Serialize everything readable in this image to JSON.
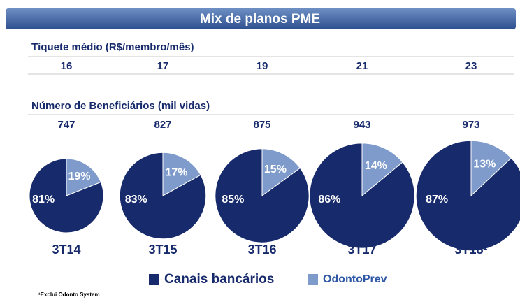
{
  "chart_data": {
    "type": "pie",
    "title": "Mix de planos PME",
    "ticket_label": "Tíquete médio (R$/membro/mês)",
    "ticket_values": [
      16,
      17,
      19,
      21,
      23
    ],
    "beneficiaries_label": "Número de Beneficiários (mil vidas)",
    "beneficiaries": [
      747,
      827,
      875,
      943,
      973
    ],
    "categories": [
      "3T14",
      "3T15",
      "3T16",
      "3T17",
      "3T18¹"
    ],
    "series": [
      {
        "name": "Canais bancários",
        "color": "#172a6b",
        "values": [
          81,
          83,
          85,
          86,
          87
        ],
        "value_labels": [
          "81%",
          "83%",
          "85%",
          "86%",
          "87%"
        ]
      },
      {
        "name": "OdontoPrev",
        "color": "#7e9bcb",
        "values": [
          19,
          17,
          15,
          14,
          13
        ],
        "value_labels": [
          "19%",
          "17%",
          "15%",
          "14%",
          "13%"
        ]
      }
    ],
    "footnote": "¹Exclui Odonto System"
  }
}
